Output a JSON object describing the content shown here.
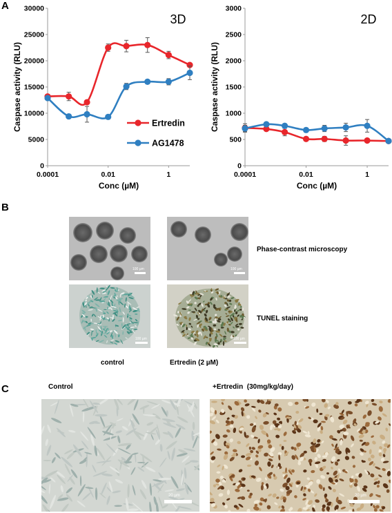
{
  "panels": {
    "a": "A",
    "b": "B",
    "c": "C"
  },
  "chart_data": [
    {
      "type": "line",
      "title": "3D",
      "xlabel": "Conc (µM)",
      "ylabel": "Caspase activity (RLU)",
      "x_scale": "log",
      "x_ticks": [
        "0.0001",
        "0.01",
        "1"
      ],
      "y_ticks": [
        "0",
        "5000",
        "10000",
        "15000",
        "20000",
        "25000",
        "30000"
      ],
      "ylim": [
        0,
        30000
      ],
      "x": [
        0.0001,
        0.0005,
        0.002,
        0.01,
        0.04,
        0.2,
        1,
        5
      ],
      "series": [
        {
          "name": "Ertredin",
          "color": "#e8262b",
          "values": [
            13200,
            13200,
            12100,
            22500,
            22800,
            23000,
            21100,
            19200
          ],
          "errors": [
            300,
            800,
            300,
            700,
            1100,
            1400,
            700,
            300
          ]
        },
        {
          "name": "AG1478",
          "color": "#2f7fc1",
          "values": [
            12900,
            9400,
            9800,
            9300,
            15100,
            16000,
            16000,
            17700
          ],
          "errors": [
            400,
            300,
            1500,
            300,
            600,
            300,
            600,
            1300
          ]
        }
      ],
      "legend": "center-right"
    },
    {
      "type": "line",
      "title": "2D",
      "xlabel": "Conc (µM)",
      "ylabel": "Caspase activity (RLU)",
      "x_scale": "log",
      "x_ticks": [
        "0.0001",
        "0.01",
        "1"
      ],
      "y_ticks": [
        "0",
        "500",
        "1000",
        "1500",
        "2000",
        "2500",
        "3000"
      ],
      "ylim": [
        0,
        3000
      ],
      "x": [
        0.0001,
        0.0005,
        0.002,
        0.01,
        0.04,
        0.2,
        1,
        5
      ],
      "series": [
        {
          "name": "Ertredin",
          "color": "#e8262b",
          "values": [
            720,
            700,
            640,
            510,
            510,
            480,
            480,
            470
          ],
          "errors": [
            80,
            30,
            70,
            40,
            50,
            90,
            40,
            20
          ]
        },
        {
          "name": "AG1478",
          "color": "#2f7fc1",
          "values": [
            710,
            790,
            760,
            680,
            710,
            730,
            760,
            470
          ],
          "errors": [
            60,
            40,
            40,
            40,
            60,
            80,
            120,
            20
          ]
        }
      ]
    }
  ],
  "panel_b": {
    "row_labels": [
      "Phase-contrast microscopy",
      "TUNEL staining"
    ],
    "col_labels": [
      "control",
      "Ertredin (2 µM)"
    ],
    "scale": "100 µm"
  },
  "panel_c": {
    "col_labels": [
      "Control",
      "+Ertredin  (30mg/kg/day)"
    ],
    "scale": "20 µm"
  }
}
